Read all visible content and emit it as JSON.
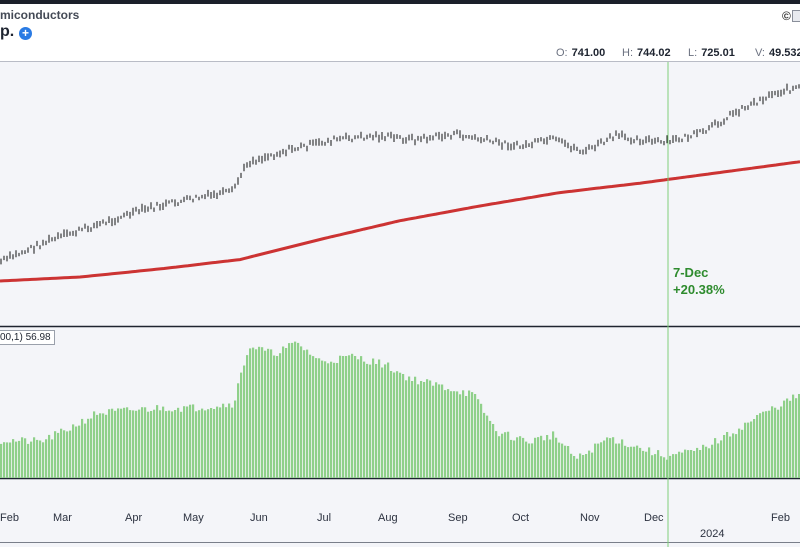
{
  "header": {
    "subtitle": "miconductors",
    "title": "p.",
    "ohlc": [
      {
        "key": "O:",
        "value": "741.00"
      },
      {
        "key": "H:",
        "value": "744.02"
      },
      {
        "key": "L:",
        "value": "725.01"
      },
      {
        "key": "V:",
        "value": "49.532"
      }
    ]
  },
  "icons": {
    "plus": "+",
    "copyright": "©"
  },
  "annotation": {
    "date": "7-Dec",
    "change": "+20.38%"
  },
  "indicator": {
    "label": "00,1) 56.98"
  },
  "colors": {
    "price": "#111111",
    "moving_average": "#cc3333",
    "histogram": "#8fd08a",
    "marker_line": "#7fce7a",
    "annotation": "#2e8b2e"
  },
  "chart_data": [
    {
      "type": "line",
      "name": "price",
      "x": [
        "Feb",
        "Mar",
        "Apr",
        "May",
        "Jun",
        "Jul",
        "Aug",
        "Sep",
        "Oct",
        "Nov",
        "Dec",
        "Feb"
      ],
      "year_label": "2024",
      "price_shape": [
        [
          0,
          0.0
        ],
        [
          0.06,
          0.12
        ],
        [
          0.12,
          0.21
        ],
        [
          0.18,
          0.3
        ],
        [
          0.24,
          0.36
        ],
        [
          0.29,
          0.4
        ],
        [
          0.31,
          0.57
        ],
        [
          0.36,
          0.64
        ],
        [
          0.42,
          0.7
        ],
        [
          0.47,
          0.72
        ],
        [
          0.52,
          0.7
        ],
        [
          0.57,
          0.73
        ],
        [
          0.6,
          0.7
        ],
        [
          0.65,
          0.66
        ],
        [
          0.69,
          0.7
        ],
        [
          0.73,
          0.63
        ],
        [
          0.77,
          0.72
        ],
        [
          0.83,
          0.68
        ],
        [
          0.88,
          0.74
        ],
        [
          0.92,
          0.86
        ],
        [
          0.97,
          0.97
        ],
        [
          1.0,
          1.0
        ]
      ],
      "moving_average_shape": [
        [
          0,
          0.0
        ],
        [
          0.1,
          0.03
        ],
        [
          0.2,
          0.09
        ],
        [
          0.3,
          0.16
        ],
        [
          0.4,
          0.31
        ],
        [
          0.5,
          0.45
        ],
        [
          0.6,
          0.56
        ],
        [
          0.7,
          0.66
        ],
        [
          0.8,
          0.73
        ],
        [
          0.9,
          0.81
        ],
        [
          1.0,
          0.89
        ]
      ],
      "marker": {
        "label": "7-Dec",
        "change": "+20.38%",
        "position": 0.835
      }
    },
    {
      "type": "bar",
      "name": "indicator",
      "current_value": 56.98,
      "shape": [
        [
          0,
          0.28
        ],
        [
          0.05,
          0.27
        ],
        [
          0.08,
          0.35
        ],
        [
          0.12,
          0.48
        ],
        [
          0.16,
          0.5
        ],
        [
          0.2,
          0.52
        ],
        [
          0.24,
          0.52
        ],
        [
          0.29,
          0.55
        ],
        [
          0.31,
          0.98
        ],
        [
          0.34,
          0.92
        ],
        [
          0.37,
          1.0
        ],
        [
          0.4,
          0.86
        ],
        [
          0.44,
          0.9
        ],
        [
          0.48,
          0.84
        ],
        [
          0.51,
          0.74
        ],
        [
          0.55,
          0.68
        ],
        [
          0.59,
          0.62
        ],
        [
          0.62,
          0.34
        ],
        [
          0.66,
          0.27
        ],
        [
          0.69,
          0.32
        ],
        [
          0.72,
          0.14
        ],
        [
          0.76,
          0.3
        ],
        [
          0.8,
          0.22
        ],
        [
          0.83,
          0.16
        ],
        [
          0.87,
          0.2
        ],
        [
          0.91,
          0.32
        ],
        [
          0.95,
          0.47
        ],
        [
          1.0,
          0.62
        ]
      ]
    }
  ]
}
